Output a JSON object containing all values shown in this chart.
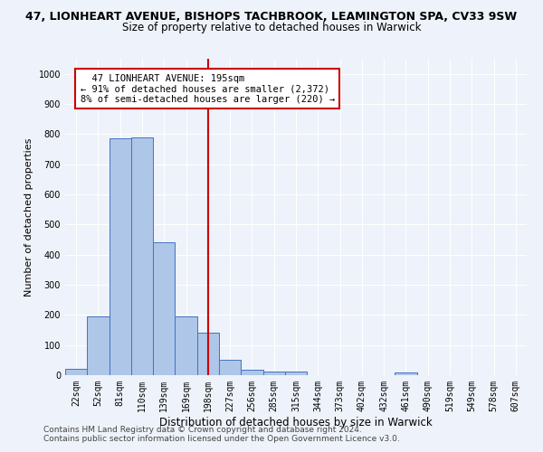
{
  "title_line1": "47, LIONHEART AVENUE, BISHOPS TACHBROOK, LEAMINGTON SPA, CV33 9SW",
  "title_line2": "Size of property relative to detached houses in Warwick",
  "xlabel": "Distribution of detached houses by size in Warwick",
  "ylabel": "Number of detached properties",
  "bin_labels": [
    "22sqm",
    "52sqm",
    "81sqm",
    "110sqm",
    "139sqm",
    "169sqm",
    "198sqm",
    "227sqm",
    "256sqm",
    "285sqm",
    "315sqm",
    "344sqm",
    "373sqm",
    "402sqm",
    "432sqm",
    "461sqm",
    "490sqm",
    "519sqm",
    "549sqm",
    "578sqm",
    "607sqm"
  ],
  "bar_heights": [
    20,
    195,
    785,
    790,
    440,
    195,
    140,
    50,
    18,
    13,
    13,
    0,
    0,
    0,
    0,
    10,
    0,
    0,
    0,
    0,
    0
  ],
  "bar_color": "#aec6e8",
  "bar_edge_color": "#4472c4",
  "vline_x_index": 6,
  "vline_color": "#cc0000",
  "annotation_text": "  47 LIONHEART AVENUE: 195sqm\n← 91% of detached houses are smaller (2,372)\n8% of semi-detached houses are larger (220) →",
  "annotation_box_color": "#ffffff",
  "annotation_box_edge": "#cc0000",
  "ylim": [
    0,
    1050
  ],
  "yticks": [
    0,
    100,
    200,
    300,
    400,
    500,
    600,
    700,
    800,
    900,
    1000
  ],
  "footer_line1": "Contains HM Land Registry data © Crown copyright and database right 2024.",
  "footer_line2": "Contains public sector information licensed under the Open Government Licence v3.0.",
  "background_color": "#eef2fa",
  "grid_color": "#ffffff",
  "title1_fontsize": 9,
  "title2_fontsize": 8.5,
  "ylabel_fontsize": 8,
  "xlabel_fontsize": 8.5,
  "tick_fontsize": 7,
  "annotation_fontsize": 7.5,
  "footer_fontsize": 6.5
}
